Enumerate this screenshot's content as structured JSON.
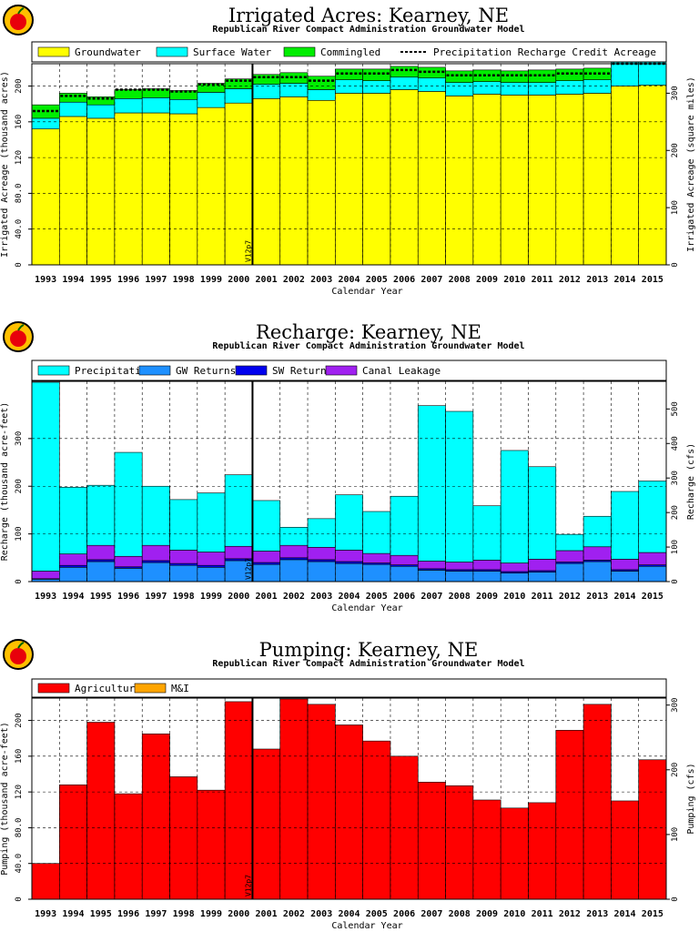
{
  "colors": {
    "groundwater": "#ffff00",
    "surface_water": "#00ffff",
    "commingled": "#00ee00",
    "precipitation": "#00ffff",
    "gw_returns": "#1e90ff",
    "sw_returns": "#0000ee",
    "canal_leakage": "#a020f0",
    "agricultural": "#ff0000",
    "mi": "#ffa500",
    "logo_apple": "#e8000b",
    "logo_ring": "#ffc000"
  },
  "chart_data": [
    {
      "type": "bar",
      "stacked": true,
      "title": "Irrigated Acres: Kearney, NE",
      "subtitle": "Republican River Compact Administration Groundwater Model",
      "xlabel": "Calendar Year",
      "ylabel": "Irrigated Acreage (thousand acres)",
      "y2label": "Irrigated Acreage (square miles)",
      "ylim": [
        0,
        225
      ],
      "y2lim": [
        0,
        351.56
      ],
      "yticks": [
        "0",
        "40.0",
        "80.0",
        "120",
        "160",
        "200"
      ],
      "y2ticks": [
        "0",
        "100",
        "200",
        "300"
      ],
      "y2tick_values": [
        0,
        100,
        200,
        300
      ],
      "marker_label": "V12p7",
      "marker_after_year": "2000",
      "grid": true,
      "legend_placement": "top",
      "categories": [
        "1993",
        "1994",
        "1995",
        "1996",
        "1997",
        "1998",
        "1999",
        "2000",
        "2001",
        "2002",
        "2003",
        "2004",
        "2005",
        "2006",
        "2007",
        "2008",
        "2009",
        "2010",
        "2011",
        "2012",
        "2013",
        "2014",
        "2015"
      ],
      "series": [
        {
          "name": "Groundwater",
          "color_key": "groundwater",
          "values": [
            152,
            166,
            164,
            170,
            170,
            169,
            176,
            181,
            186,
            188,
            184,
            192,
            192,
            196,
            194,
            189,
            191,
            190,
            190,
            191,
            192,
            200,
            201
          ]
        },
        {
          "name": "Surface Water",
          "color_key": "surface_water",
          "values": [
            12,
            16,
            15,
            16,
            17,
            16,
            17,
            16,
            16,
            15,
            12,
            15,
            14,
            14,
            15,
            15,
            14,
            14,
            14,
            15,
            15,
            27,
            26
          ]
        },
        {
          "name": "Commingled",
          "color_key": "commingled",
          "values": [
            15,
            10,
            9,
            10,
            10,
            10,
            10,
            11,
            11,
            12,
            15,
            12,
            13,
            12,
            12,
            13,
            13,
            13,
            14,
            13,
            13,
            0,
            0
          ]
        }
      ],
      "line_series": {
        "name": "Precipitation Recharge Credit Acreage",
        "values": [
          172,
          189,
          186,
          196,
          196,
          194,
          202,
          206,
          210,
          210,
          206,
          214,
          214,
          218,
          216,
          212,
          212,
          212,
          212,
          214,
          214,
          225,
          225
        ]
      }
    },
    {
      "type": "bar",
      "stacked": true,
      "title": "Recharge: Kearney, NE",
      "subtitle": "Republican River Compact Administration Groundwater Model",
      "xlabel": "Calendar Year",
      "ylabel": "Recharge (thousand acre-feet)",
      "y2label": "Recharge (cfs)",
      "ylim": [
        0,
        420
      ],
      "y2lim": [
        0,
        580
      ],
      "yticks": [
        "0",
        "100",
        "200",
        "300"
      ],
      "ytick_values": [
        0,
        100,
        200,
        300
      ],
      "y2ticks": [
        "0",
        "100",
        "200",
        "300",
        "400",
        "500"
      ],
      "y2tick_values": [
        0,
        100,
        200,
        300,
        400,
        500
      ],
      "marker_label": "V12p7",
      "marker_after_year": "2000",
      "grid": true,
      "legend_placement": "top",
      "categories": [
        "1993",
        "1994",
        "1995",
        "1996",
        "1997",
        "1998",
        "1999",
        "2000",
        "2001",
        "2002",
        "2003",
        "2004",
        "2005",
        "2006",
        "2007",
        "2008",
        "2009",
        "2010",
        "2011",
        "2012",
        "2013",
        "2014",
        "2015"
      ],
      "series": [
        {
          "name": "Canal Leakage",
          "color_key": "canal_leakage",
          "values": [
            16,
            24,
            30,
            22,
            32,
            28,
            28,
            26,
            24,
            26,
            26,
            24,
            20,
            20,
            16,
            16,
            20,
            18,
            24,
            24,
            28,
            22,
            26
          ]
        },
        {
          "name": "SW Returns",
          "color_key": "sw_returns",
          "values": [
            1,
            4,
            4,
            3,
            4,
            4,
            4,
            4,
            4,
            4,
            4,
            4,
            3,
            3,
            3,
            3,
            3,
            3,
            3,
            3,
            3,
            3,
            3
          ]
        },
        {
          "name": "GW Returns",
          "color_key": "gw_returns",
          "values": [
            5,
            30,
            42,
            28,
            40,
            34,
            30,
            44,
            36,
            46,
            42,
            38,
            36,
            32,
            24,
            22,
            22,
            18,
            20,
            38,
            42,
            22,
            32
          ]
        },
        {
          "name": "Precipitation",
          "color_key": "precipitation",
          "values": [
            396,
            140,
            126,
            218,
            124,
            106,
            124,
            150,
            106,
            38,
            60,
            116,
            88,
            124,
            326,
            316,
            114,
            236,
            194,
            34,
            64,
            142,
            150
          ]
        }
      ],
      "stack_order": [
        "GW Returns",
        "SW Returns",
        "Canal Leakage",
        "Precipitation"
      ],
      "legend_order": [
        "Precipitation",
        "GW Returns",
        "SW Returns",
        "Canal Leakage"
      ]
    },
    {
      "type": "bar",
      "stacked": true,
      "title": "Pumping: Kearney, NE",
      "subtitle": "Republican River Compact Administration Groundwater Model",
      "xlabel": "Calendar Year",
      "ylabel": "Pumping (thousand acre-feet)",
      "y2label": "Pumping (cfs)",
      "ylim": [
        0,
        225
      ],
      "y2lim": [
        0,
        310.8
      ],
      "yticks": [
        "0",
        "40.0",
        "80.0",
        "120",
        "160",
        "200"
      ],
      "y2ticks": [
        "0",
        "100",
        "200",
        "300"
      ],
      "y2tick_values": [
        0,
        100,
        200,
        300
      ],
      "marker_label": "V12p7",
      "marker_after_year": "2000",
      "grid": true,
      "legend_placement": "top",
      "categories": [
        "1993",
        "1994",
        "1995",
        "1996",
        "1997",
        "1998",
        "1999",
        "2000",
        "2001",
        "2002",
        "2003",
        "2004",
        "2005",
        "2006",
        "2007",
        "2008",
        "2009",
        "2010",
        "2011",
        "2012",
        "2013",
        "2014",
        "2015"
      ],
      "series": [
        {
          "name": "Agricultural",
          "color_key": "agricultural",
          "values": [
            40,
            128,
            198,
            118,
            185,
            137,
            122,
            221,
            168,
            224,
            218,
            195,
            177,
            160,
            131,
            127,
            111,
            102,
            108,
            189,
            218,
            110,
            156
          ]
        },
        {
          "name": "M&I",
          "color_key": "mi",
          "values": [
            0,
            0,
            0,
            0,
            0,
            0,
            0,
            0,
            0,
            0,
            0,
            0,
            0,
            0,
            0,
            0,
            0,
            0,
            0,
            0,
            0,
            0,
            0
          ]
        }
      ]
    }
  ]
}
